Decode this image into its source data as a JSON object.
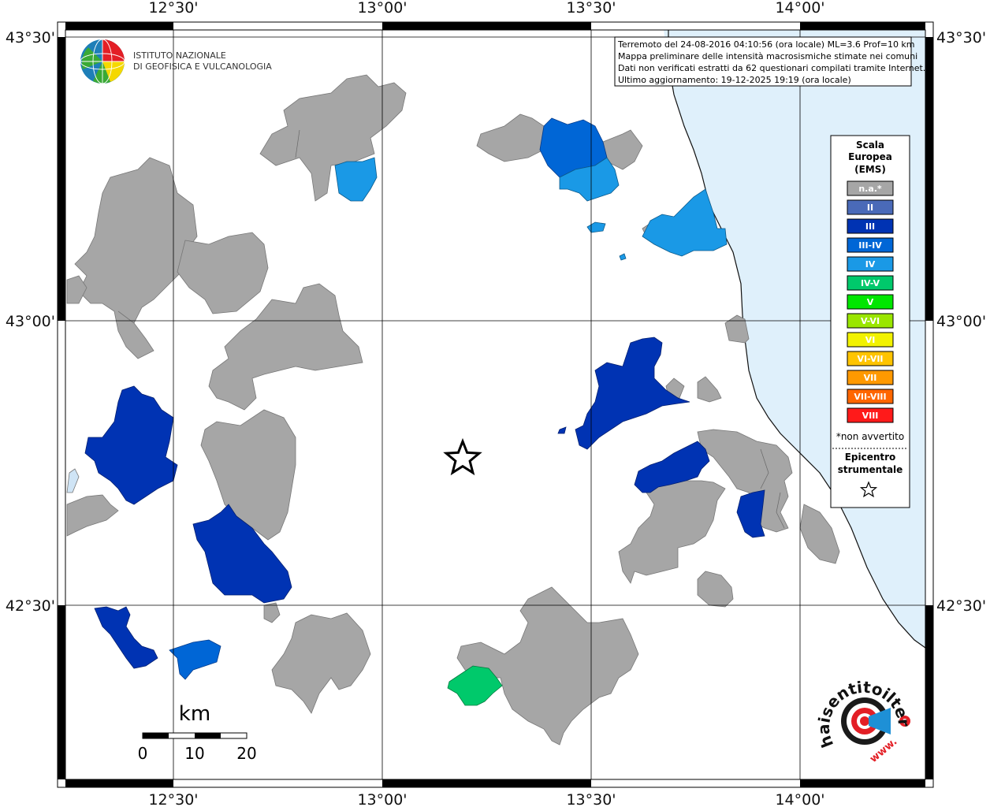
{
  "map": {
    "lon_labels": [
      "12°30'",
      "13°00'",
      "13°30'",
      "14°00'"
    ],
    "lat_labels": [
      "43°30'",
      "43°00'",
      "42°30'"
    ],
    "colors": {
      "na": "#a6a6a6",
      "II": "#4a6ab8",
      "III": "#0033b3",
      "III-IV": "#0066d6",
      "IV": "#1a99e6",
      "IV-V": "#00c96b",
      "sea": "#dff0fb"
    }
  },
  "ingv": {
    "line1": "ISTITUTO NAZIONALE",
    "line2": "DI GEOFISICA E VULCANOLOGIA"
  },
  "info": {
    "line1": "Terremoto del 24-08-2016 04:10:56 (ora locale) ML=3.6 Prof=10 km",
    "line2": "Mappa preliminare delle intensità macrosismiche stimate nei comuni",
    "line3": "Dati non verificati estratti da 62 questionari compilati tramite Internet.",
    "line4": "Ultimo aggiornamento: 19-12-2025 19:19 (ora locale)"
  },
  "legend": {
    "title1": "Scala",
    "title2": "Europea",
    "title3": "(EMS)",
    "items": [
      {
        "label": "n.a.*",
        "color": "#a6a6a6"
      },
      {
        "label": "II",
        "color": "#4a6ab8"
      },
      {
        "label": "III",
        "color": "#0033b3"
      },
      {
        "label": "III-IV",
        "color": "#0066d6"
      },
      {
        "label": "IV",
        "color": "#1a99e6"
      },
      {
        "label": "IV-V",
        "color": "#00c96b"
      },
      {
        "label": "V",
        "color": "#00e600"
      },
      {
        "label": "V-VI",
        "color": "#9ae600"
      },
      {
        "label": "VI",
        "color": "#f2f200"
      },
      {
        "label": "VI-VII",
        "color": "#ffc400"
      },
      {
        "label": "VII",
        "color": "#ff9900"
      },
      {
        "label": "VII-VIII",
        "color": "#ff6600"
      },
      {
        "label": "VIII",
        "color": "#ff1a1a"
      }
    ],
    "note": "*non avvertito",
    "epi1": "Epicentro",
    "epi2": "strumentale"
  },
  "scalebar": {
    "unit": "km",
    "ticks": [
      "0",
      "10",
      "20"
    ]
  },
  "logo2": {
    "text": "haisentitoilterremoto.it",
    "url": "www."
  }
}
